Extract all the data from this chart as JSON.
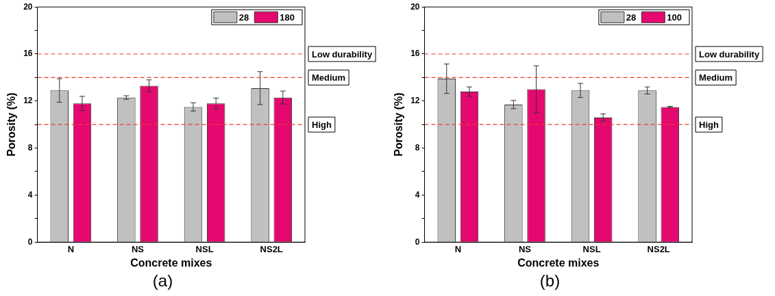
{
  "chart_data": [
    {
      "type": "bar",
      "xlabel": "Concrete mixes",
      "ylabel": "Porosity (%)",
      "categories": [
        "N",
        "NS",
        "NSL",
        "NS2L"
      ],
      "series": [
        {
          "name": "28",
          "color": "#c0c0c0",
          "values": [
            12.9,
            12.3,
            11.5,
            13.1
          ],
          "errors": [
            1.0,
            0.15,
            0.35,
            1.4
          ]
        },
        {
          "name": "180",
          "color": "#e4086f",
          "values": [
            11.8,
            13.3,
            11.8,
            12.3
          ],
          "errors": [
            0.6,
            0.5,
            0.45,
            0.55
          ]
        }
      ],
      "ylim": [
        0,
        20
      ],
      "yticks": [
        0,
        {
          "value": 2,
          "label": null
        },
        4,
        {
          "value": 6,
          "label": null
        },
        8,
        {
          "value": 10,
          "label": null
        },
        12,
        {
          "value": 14,
          "label": null
        },
        16,
        {
          "value": 18,
          "label": null
        },
        20
      ],
      "ref_lines": [
        {
          "axis": "y",
          "value": 16,
          "label": "Low durability",
          "color": "#ee3b2b",
          "line_style": "dashed"
        },
        {
          "axis": "y",
          "value": 14,
          "label": "Medium",
          "color": "#ee3b2b",
          "line_style": "dashed"
        },
        {
          "axis": "y",
          "value": 10,
          "label": "High",
          "color": "#ee3b2b",
          "line_style": "dashed"
        }
      ],
      "legend": "top right",
      "grid": false,
      "annotations": [
        "(a)"
      ]
    },
    {
      "type": "bar",
      "xlabel": "Concrete mixes",
      "ylabel": "Porosity (%)",
      "categories": [
        "N",
        "NS",
        "NSL",
        "NS2L"
      ],
      "series": [
        {
          "name": "28",
          "color": "#c0c0c0",
          "values": [
            13.9,
            11.7,
            12.9,
            12.9
          ],
          "errors": [
            1.25,
            0.35,
            0.6,
            0.3
          ]
        },
        {
          "name": "100",
          "color": "#e4086f",
          "values": [
            12.8,
            13.0,
            10.6,
            11.5
          ],
          "errors": [
            0.4,
            2.0,
            0.3,
            0.05
          ]
        }
      ],
      "ylim": [
        0,
        20
      ],
      "yticks": [
        0,
        {
          "value": 2,
          "label": null
        },
        4,
        {
          "value": 6,
          "label": null
        },
        8,
        {
          "value": 10,
          "label": null
        },
        12,
        {
          "value": 14,
          "label": null
        },
        16,
        {
          "value": 18,
          "label": null
        },
        20
      ],
      "ref_lines": [
        {
          "axis": "y",
          "value": 16,
          "label": "Low durability",
          "color": "#ee3b2b",
          "line_style": "dashed"
        },
        {
          "axis": "y",
          "value": 14,
          "label": "Medium",
          "color": "#ee3b2b",
          "line_style": "dashed"
        },
        {
          "axis": "y",
          "value": 10,
          "label": "High",
          "color": "#ee3b2b",
          "line_style": "dashed"
        }
      ],
      "legend": "top right",
      "grid": false,
      "annotations": [
        "(b)"
      ]
    }
  ]
}
